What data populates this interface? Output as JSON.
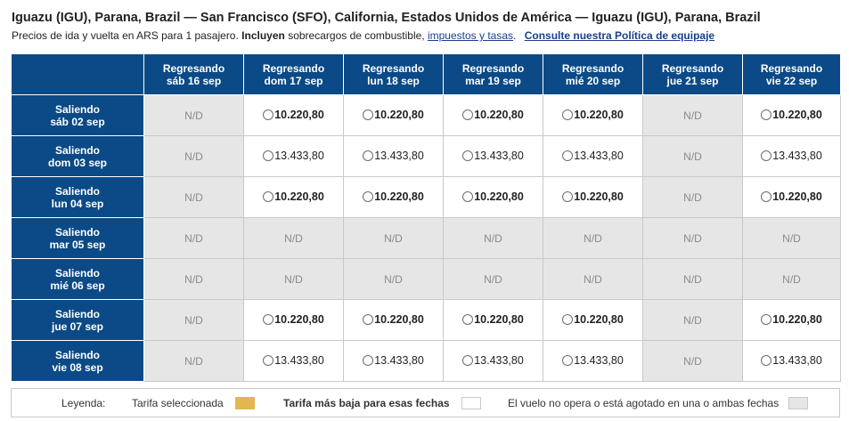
{
  "header": {
    "route": "Iguazu (IGU), Parana, Brazil — San Francisco (SFO), California, Estados Unidos de América — Iguazu (IGU), Parana, Brazil",
    "sub_prefix": "Precios de ida y vuelta en ARS para 1 pasajero.",
    "sub_bold": "Incluyen",
    "sub_mid": "sobrecargos de combustible,",
    "taxes_link": "impuestos y tasas",
    "sub_dot": ".",
    "baggage_link": "Consulte nuestra Política de equipaje"
  },
  "return_label": "Regresando",
  "depart_label": "Saliendo",
  "na_label": "N/D",
  "columns": [
    "sáb 16 sep",
    "dom 17 sep",
    "lun 18 sep",
    "mar 19 sep",
    "mié 20 sep",
    "jue 21 sep",
    "vie 22 sep"
  ],
  "rows": [
    {
      "date": "sáb 02 sep",
      "cells": [
        null,
        "10.220,80",
        "10.220,80",
        "10.220,80",
        "10.220,80",
        null,
        "10.220,80"
      ],
      "low": true
    },
    {
      "date": "dom 03 sep",
      "cells": [
        null,
        "13.433,80",
        "13.433,80",
        "13.433,80",
        "13.433,80",
        null,
        "13.433,80"
      ],
      "low": false
    },
    {
      "date": "lun 04 sep",
      "cells": [
        null,
        "10.220,80",
        "10.220,80",
        "10.220,80",
        "10.220,80",
        null,
        "10.220,80"
      ],
      "low": true
    },
    {
      "date": "mar 05 sep",
      "cells": [
        null,
        null,
        null,
        null,
        null,
        null,
        null
      ],
      "low": false
    },
    {
      "date": "mié 06 sep",
      "cells": [
        null,
        null,
        null,
        null,
        null,
        null,
        null
      ],
      "low": false
    },
    {
      "date": "jue 07 sep",
      "cells": [
        null,
        "10.220,80",
        "10.220,80",
        "10.220,80",
        "10.220,80",
        null,
        "10.220,80"
      ],
      "low": true
    },
    {
      "date": "vie 08 sep",
      "cells": [
        null,
        "13.433,80",
        "13.433,80",
        "13.433,80",
        "13.433,80",
        null,
        "13.433,80"
      ],
      "low": false
    }
  ],
  "legend": {
    "title": "Leyenda:",
    "selected": "Tarifa seleccionada",
    "lowest": "Tarifa más baja para esas fechas",
    "unavailable": "El vuelo no opera o está agotado en una o ambas fechas",
    "colors": {
      "selected": "#e2b650",
      "lowest": "#ffffff",
      "unavailable": "#e6e6e6"
    }
  },
  "colors": {
    "header_bg": "#0b4a86",
    "link": "#1a3f8f",
    "na_bg": "#e6e6e6"
  }
}
